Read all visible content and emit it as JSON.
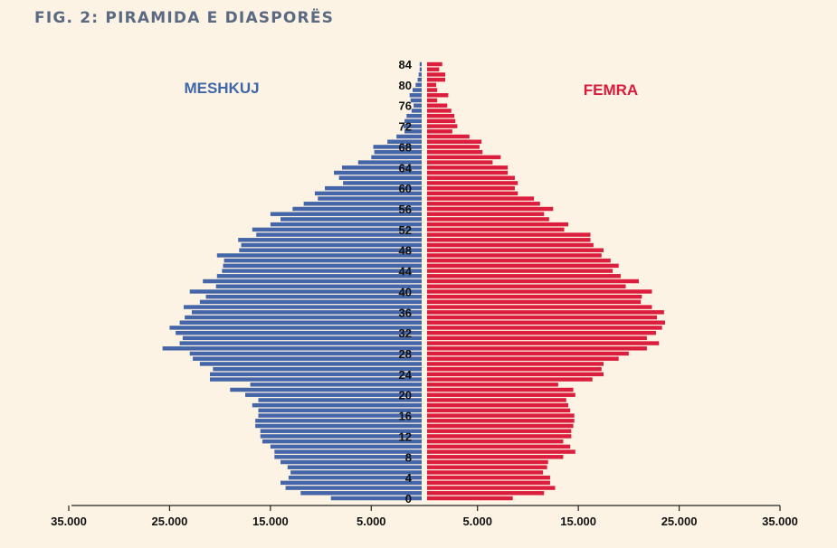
{
  "chart_data": {
    "type": "bar",
    "orientation": "horizontal",
    "title": "FIG. 2:  PIRAMIDA E DIASPORËS",
    "ages": [
      0,
      1,
      2,
      3,
      4,
      5,
      6,
      7,
      8,
      9,
      10,
      11,
      12,
      13,
      14,
      15,
      16,
      17,
      18,
      19,
      20,
      21,
      22,
      23,
      24,
      25,
      26,
      27,
      28,
      29,
      30,
      31,
      32,
      33,
      34,
      35,
      36,
      37,
      38,
      39,
      40,
      41,
      42,
      43,
      44,
      45,
      46,
      47,
      48,
      49,
      50,
      51,
      52,
      53,
      54,
      55,
      56,
      57,
      58,
      59,
      60,
      61,
      62,
      63,
      64,
      65,
      66,
      67,
      68,
      69,
      70,
      71,
      72,
      73,
      74,
      75,
      76,
      77,
      78,
      79,
      80,
      81,
      82,
      83,
      84
    ],
    "age_tick_labels": [
      "0",
      "4",
      "8",
      "12",
      "16",
      "20",
      "24",
      "28",
      "32",
      "36",
      "40",
      "44",
      "48",
      "52",
      "56",
      "60",
      "64",
      "68",
      "72",
      "76",
      "80",
      "84"
    ],
    "series": [
      {
        "name": "MESHKUJ",
        "color": "#4466a8",
        "values": [
          9000,
          12000,
          13500,
          14000,
          13200,
          13000,
          13300,
          14000,
          14600,
          14600,
          15000,
          15800,
          16000,
          16000,
          16500,
          16500,
          16200,
          16200,
          16800,
          16200,
          17500,
          19000,
          17000,
          21000,
          21000,
          20700,
          22000,
          22700,
          23000,
          25700,
          24000,
          23700,
          24400,
          25000,
          24000,
          23500,
          22800,
          23600,
          22000,
          21400,
          23000,
          20400,
          21700,
          20300,
          19800,
          19700,
          19600,
          20300,
          18100,
          17900,
          18200,
          16400,
          16800,
          15000,
          14000,
          15000,
          12800,
          11700,
          10300,
          10600,
          9600,
          7800,
          8200,
          8700,
          7900,
          6300,
          5000,
          4700,
          4800,
          3400,
          2500,
          1700,
          1800,
          1700,
          1500,
          1000,
          800,
          1100,
          1200,
          900,
          600,
          400,
          300,
          200,
          200
        ]
      },
      {
        "name": "FEMRA",
        "color": "#dc1e3e",
        "values": [
          8500,
          11600,
          12700,
          12200,
          12200,
          11500,
          11900,
          12000,
          13500,
          14700,
          14200,
          13500,
          14300,
          14300,
          14500,
          14600,
          14600,
          14200,
          14000,
          13800,
          14700,
          14500,
          13000,
          16400,
          17500,
          17300,
          17500,
          19000,
          20000,
          21800,
          23000,
          21800,
          22700,
          23300,
          23600,
          22800,
          23500,
          22300,
          21200,
          21300,
          22300,
          19700,
          21000,
          19200,
          18400,
          19000,
          18200,
          17300,
          17500,
          16500,
          16200,
          16200,
          13600,
          14000,
          12100,
          11600,
          12500,
          11200,
          10600,
          9000,
          8700,
          9000,
          8700,
          8000,
          8000,
          6500,
          7300,
          5500,
          5200,
          5400,
          4200,
          2500,
          3000,
          2800,
          2700,
          2400,
          2000,
          1000,
          2100,
          1000,
          900,
          1800,
          1800,
          1200,
          1500
        ]
      }
    ],
    "x_tick_labels": [
      "35.000",
      "25.000",
      "15.000",
      "5.000",
      "5.000",
      "15.000",
      "25.000",
      "35.000"
    ],
    "xlim": [
      -35000,
      35000
    ],
    "legend": [
      "MESHKUJ",
      "FEMRA"
    ]
  }
}
